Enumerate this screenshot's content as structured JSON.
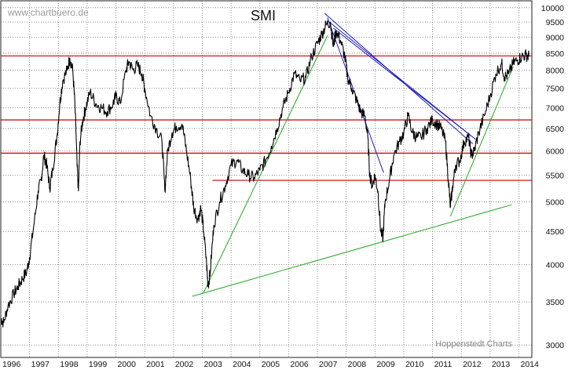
{
  "chart_data": {
    "type": "line",
    "title": "SMI",
    "watermark": "www.chartbuero.de",
    "credit": "Hoppenstedt Charts",
    "y_scale": "log",
    "ylim": [
      2870,
      10250
    ],
    "xlim": [
      1996.0,
      2014.45
    ],
    "grid": true,
    "x_ticks": [
      {
        "label": "1996",
        "value": 1996
      },
      {
        "label": "1997",
        "value": 1997
      },
      {
        "label": "1998",
        "value": 1998
      },
      {
        "label": "1999",
        "value": 1999
      },
      {
        "label": "2000",
        "value": 2000
      },
      {
        "label": "2001",
        "value": 2001
      },
      {
        "label": "2002",
        "value": 2002
      },
      {
        "label": "2003",
        "value": 2003
      },
      {
        "label": "2004",
        "value": 2004
      },
      {
        "label": "2005",
        "value": 2005
      },
      {
        "label": "2006",
        "value": 2006
      },
      {
        "label": "2007",
        "value": 2007
      },
      {
        "label": "2008",
        "value": 2008
      },
      {
        "label": "2009",
        "value": 2009
      },
      {
        "label": "2010",
        "value": 2010
      },
      {
        "label": "2011",
        "value": 2011
      },
      {
        "label": "2012",
        "value": 2012
      },
      {
        "label": "2013",
        "value": 2013
      },
      {
        "label": "2014",
        "value": 2014
      }
    ],
    "y_ticks": [
      {
        "label": "10000",
        "value": 10000
      },
      {
        "label": "9500",
        "value": 9500
      },
      {
        "label": "9000",
        "value": 9000
      },
      {
        "label": "8500",
        "value": 8500
      },
      {
        "label": "8000",
        "value": 8000
      },
      {
        "label": "7500",
        "value": 7500
      },
      {
        "label": "7000",
        "value": 7000
      },
      {
        "label": "6500",
        "value": 6500
      },
      {
        "label": "6000",
        "value": 6000
      },
      {
        "label": "5500",
        "value": 5500
      },
      {
        "label": "5000",
        "value": 5000
      },
      {
        "label": "4500",
        "value": 4500
      },
      {
        "label": "4000",
        "value": 4000
      },
      {
        "label": "3500",
        "value": 3500
      },
      {
        "label": "3000",
        "value": 3000
      }
    ],
    "series": [
      {
        "name": "SMI",
        "color": "#000000",
        "points": [
          [
            1996.0,
            3300
          ],
          [
            1996.1,
            3250
          ],
          [
            1996.25,
            3450
          ],
          [
            1996.45,
            3600
          ],
          [
            1996.6,
            3700
          ],
          [
            1996.75,
            3800
          ],
          [
            1996.9,
            3900
          ],
          [
            1997.0,
            4100
          ],
          [
            1997.15,
            4600
          ],
          [
            1997.3,
            5200
          ],
          [
            1997.4,
            5400
          ],
          [
            1997.5,
            5900
          ],
          [
            1997.6,
            5700
          ],
          [
            1997.7,
            5250
          ],
          [
            1997.8,
            5600
          ],
          [
            1997.95,
            6300
          ],
          [
            1998.05,
            7100
          ],
          [
            1998.15,
            7700
          ],
          [
            1998.3,
            8000
          ],
          [
            1998.4,
            8350
          ],
          [
            1998.5,
            8000
          ],
          [
            1998.58,
            7000
          ],
          [
            1998.65,
            5700
          ],
          [
            1998.7,
            5200
          ],
          [
            1998.75,
            6200
          ],
          [
            1998.85,
            6700
          ],
          [
            1998.95,
            7000
          ],
          [
            1999.1,
            7400
          ],
          [
            1999.3,
            7100
          ],
          [
            1999.5,
            7000
          ],
          [
            1999.7,
            6900
          ],
          [
            1999.9,
            7100
          ],
          [
            2000.0,
            7300
          ],
          [
            2000.15,
            7100
          ],
          [
            2000.35,
            8000
          ],
          [
            2000.45,
            8250
          ],
          [
            2000.6,
            8000
          ],
          [
            2000.75,
            8150
          ],
          [
            2000.9,
            7900
          ],
          [
            2001.0,
            7500
          ],
          [
            2001.2,
            6800
          ],
          [
            2001.4,
            6500
          ],
          [
            2001.6,
            6200
          ],
          [
            2001.7,
            5200
          ],
          [
            2001.8,
            6000
          ],
          [
            2001.95,
            6400
          ],
          [
            2002.1,
            6550
          ],
          [
            2002.3,
            6600
          ],
          [
            2002.45,
            6000
          ],
          [
            2002.6,
            5400
          ],
          [
            2002.7,
            4900
          ],
          [
            2002.85,
            4700
          ],
          [
            2002.95,
            4900
          ],
          [
            2003.05,
            4500
          ],
          [
            2003.15,
            4000
          ],
          [
            2003.2,
            3700
          ],
          [
            2003.28,
            3900
          ],
          [
            2003.4,
            4600
          ],
          [
            2003.6,
            5000
          ],
          [
            2003.8,
            5300
          ],
          [
            2004.0,
            5700
          ],
          [
            2004.2,
            5800
          ],
          [
            2004.4,
            5600
          ],
          [
            2004.6,
            5500
          ],
          [
            2004.8,
            5450
          ],
          [
            2005.0,
            5600
          ],
          [
            2005.2,
            5800
          ],
          [
            2005.4,
            6100
          ],
          [
            2005.6,
            6500
          ],
          [
            2005.8,
            7000
          ],
          [
            2006.0,
            7400
          ],
          [
            2006.2,
            7900
          ],
          [
            2006.4,
            7700
          ],
          [
            2006.6,
            7800
          ],
          [
            2006.8,
            8400
          ],
          [
            2007.0,
            8800
          ],
          [
            2007.15,
            9100
          ],
          [
            2007.3,
            9400
          ],
          [
            2007.45,
            9500
          ],
          [
            2007.55,
            8700
          ],
          [
            2007.65,
            9200
          ],
          [
            2007.8,
            8900
          ],
          [
            2007.95,
            8400
          ],
          [
            2008.05,
            7800
          ],
          [
            2008.2,
            7500
          ],
          [
            2008.35,
            7200
          ],
          [
            2008.5,
            6900
          ],
          [
            2008.65,
            6800
          ],
          [
            2008.75,
            6300
          ],
          [
            2008.82,
            5500
          ],
          [
            2008.9,
            5300
          ],
          [
            2009.0,
            5500
          ],
          [
            2009.1,
            5200
          ],
          [
            2009.2,
            4500
          ],
          [
            2009.28,
            4400
          ],
          [
            2009.35,
            5000
          ],
          [
            2009.5,
            5400
          ],
          [
            2009.65,
            5900
          ],
          [
            2009.85,
            6200
          ],
          [
            2010.0,
            6400
          ],
          [
            2010.15,
            6800
          ],
          [
            2010.3,
            6400
          ],
          [
            2010.45,
            6300
          ],
          [
            2010.6,
            6300
          ],
          [
            2010.8,
            6500
          ],
          [
            2011.0,
            6700
          ],
          [
            2011.15,
            6600
          ],
          [
            2011.3,
            6500
          ],
          [
            2011.45,
            6200
          ],
          [
            2011.55,
            5400
          ],
          [
            2011.62,
            4900
          ],
          [
            2011.7,
            5300
          ],
          [
            2011.8,
            5700
          ],
          [
            2011.95,
            5800
          ],
          [
            2012.1,
            6200
          ],
          [
            2012.25,
            6300
          ],
          [
            2012.35,
            5900
          ],
          [
            2012.45,
            6000
          ],
          [
            2012.6,
            6400
          ],
          [
            2012.8,
            6800
          ],
          [
            2013.0,
            7300
          ],
          [
            2013.2,
            7900
          ],
          [
            2013.4,
            8200
          ],
          [
            2013.5,
            7800
          ],
          [
            2013.65,
            7900
          ],
          [
            2013.8,
            8200
          ],
          [
            2013.95,
            8300
          ],
          [
            2014.1,
            8400
          ],
          [
            2014.25,
            8450
          ],
          [
            2014.35,
            8400
          ]
        ]
      }
    ],
    "horizontal_lines": {
      "color": "#cc0000",
      "values": [
        8420,
        6700,
        5950,
        5400
      ],
      "last_line_start": 2003.35
    },
    "trendlines": [
      {
        "color": "#22aa22",
        "from": [
          2002.65,
          3570
        ],
        "to": [
          2013.75,
          4950
        ]
      },
      {
        "color": "#22aa22",
        "from": [
          2003.05,
          3620
        ],
        "to": [
          2007.35,
          9050
        ]
      },
      {
        "color": "#22aa22",
        "from": [
          2011.62,
          4750
        ],
        "to": [
          2013.8,
          8100
        ]
      },
      {
        "color": "#2020c0",
        "from": [
          2007.35,
          9650
        ],
        "to": [
          2009.3,
          5550
        ]
      },
      {
        "color": "#2020c0",
        "from": [
          2007.25,
          9800
        ],
        "to": [
          2012.4,
          6150
        ]
      },
      {
        "color": "#2020c0",
        "from": [
          2007.35,
          9550
        ],
        "to": [
          2012.3,
          6350
        ]
      },
      {
        "color": "#2020c0",
        "from": [
          2007.55,
          9300
        ],
        "to": [
          2012.5,
          6250
        ]
      }
    ]
  }
}
